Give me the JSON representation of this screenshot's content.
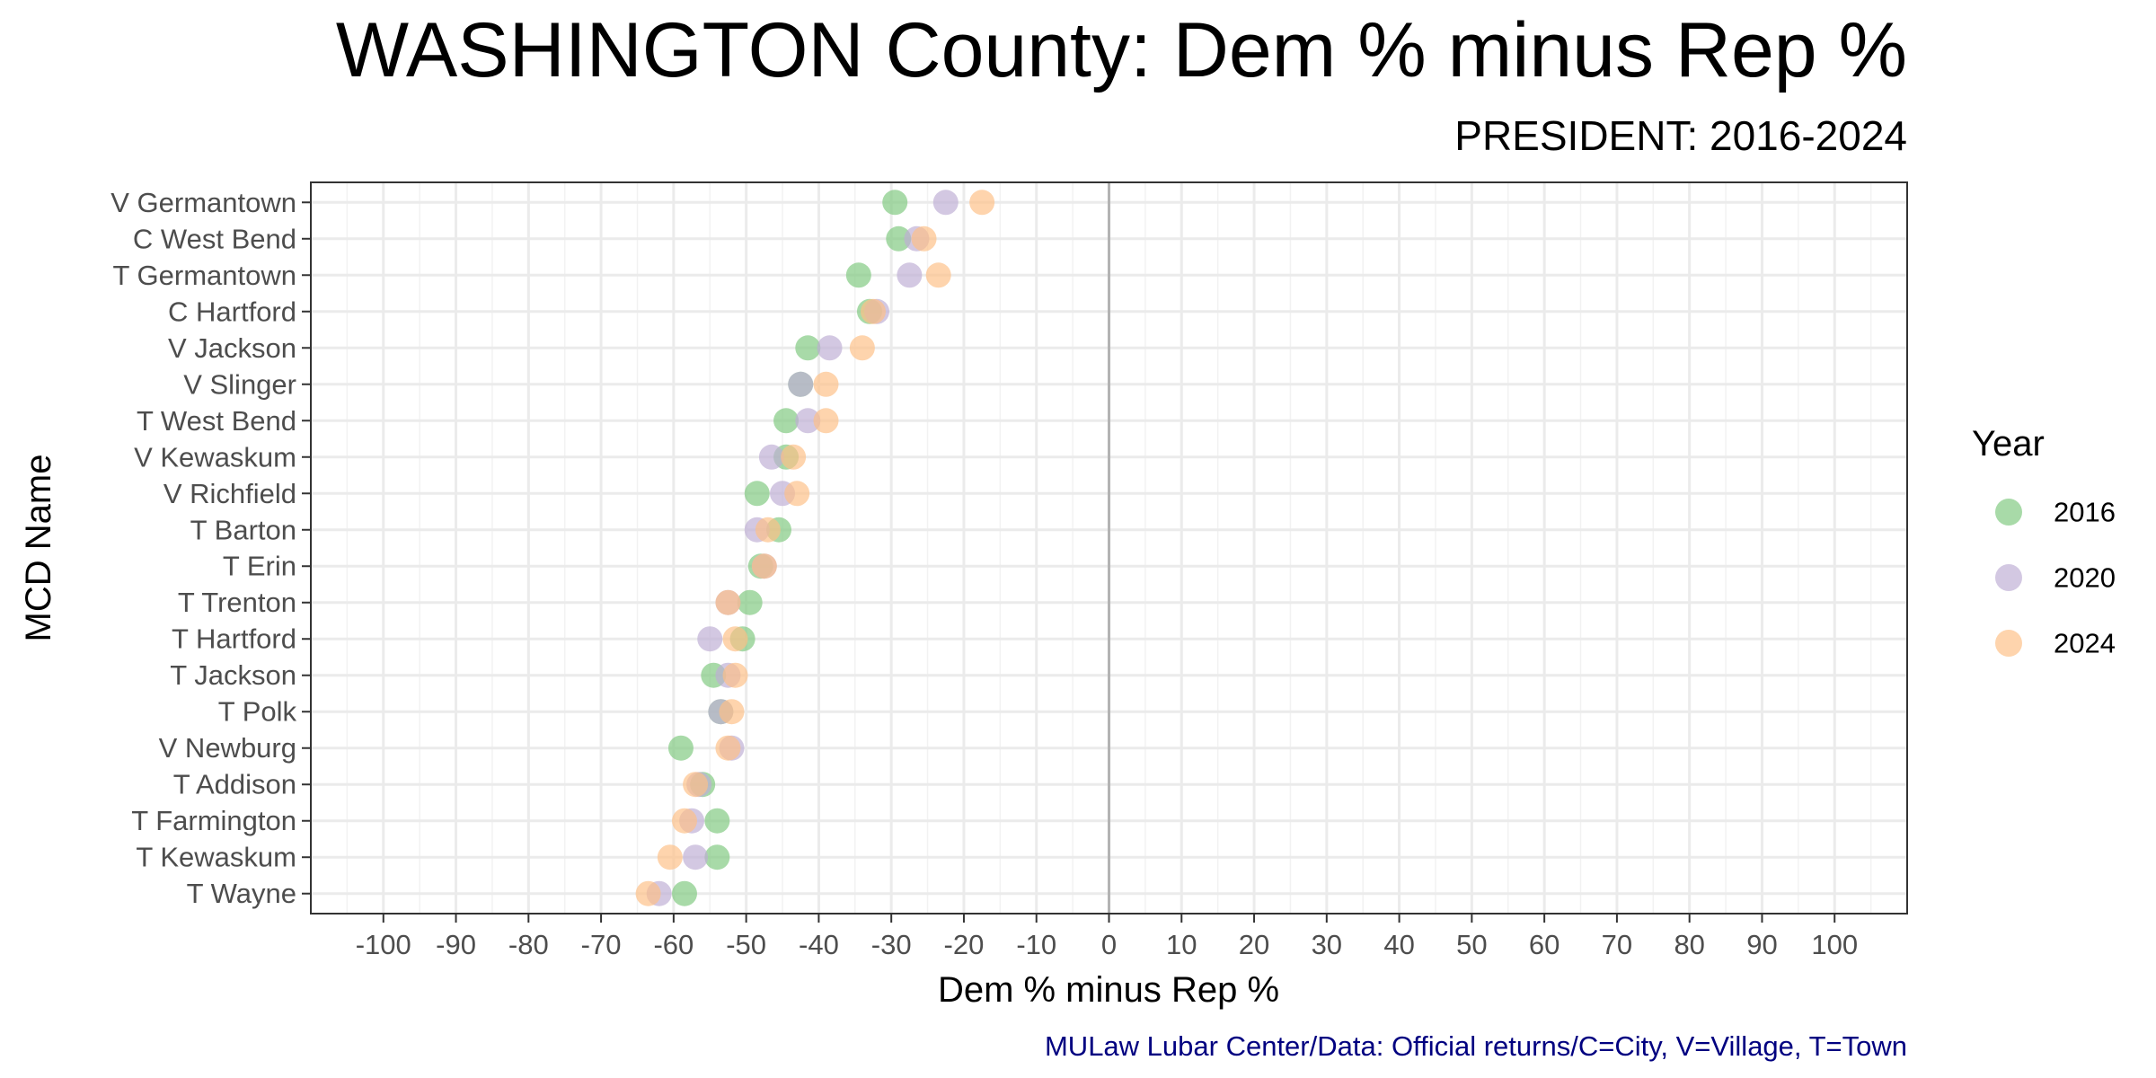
{
  "chart_data": {
    "type": "scatter",
    "title": "WASHINGTON County: Dem % minus Rep %",
    "subtitle": "PRESIDENT: 2016-2024",
    "xlabel": "Dem % minus Rep %",
    "ylabel": "MCD Name",
    "caption": "MULaw Lubar Center/Data: Official returns/C=City, V=Village, T=Town",
    "xlim": [
      -110,
      110
    ],
    "x_ticks": [
      -100,
      -90,
      -80,
      -70,
      -60,
      -50,
      -40,
      -30,
      -20,
      -10,
      0,
      10,
      20,
      30,
      40,
      50,
      60,
      70,
      80,
      90,
      100
    ],
    "grid": true,
    "reference_line_x": 0,
    "legend_title": "Year",
    "legend_position": "right",
    "categories": [
      "V Germantown",
      "C West Bend",
      "T Germantown",
      "C Hartford",
      "V Jackson",
      "V Slinger",
      "T West Bend",
      "V Kewaskum",
      "V Richfield",
      "T Barton",
      "T Erin",
      "T Trenton",
      "T Hartford",
      "T Jackson",
      "T Polk",
      "V Newburg",
      "T Addison",
      "T Farmington",
      "T Kewaskum",
      "T Wayne"
    ],
    "series": [
      {
        "name": "2016",
        "color": "#7fc97f",
        "values": [
          -29.5,
          -29,
          -34.5,
          -33,
          -41.5,
          -42.5,
          -44.5,
          -44.5,
          -48.5,
          -45.5,
          -48,
          -49.5,
          -50.5,
          -54.5,
          -53.5,
          -59,
          -56,
          -54,
          -54,
          -58.5
        ]
      },
      {
        "name": "2020",
        "color": "#beaed4",
        "values": [
          -22.5,
          -26.5,
          -27.5,
          -32,
          -38.5,
          -42.5,
          -41.5,
          -46.5,
          -45,
          -48.5,
          -47.5,
          -52.5,
          -55,
          -52.5,
          -53.5,
          -52,
          -56.5,
          -57.5,
          -57,
          -62
        ]
      },
      {
        "name": "2024",
        "color": "#fdc086",
        "values": [
          -17.5,
          -25.5,
          -23.5,
          -32.5,
          -34,
          -39,
          -39,
          -43.5,
          -43,
          -47,
          -47.5,
          -52.5,
          -51.5,
          -51.5,
          -52,
          -52.5,
          -57,
          -58.5,
          -60.5,
          -63.5
        ]
      }
    ]
  }
}
